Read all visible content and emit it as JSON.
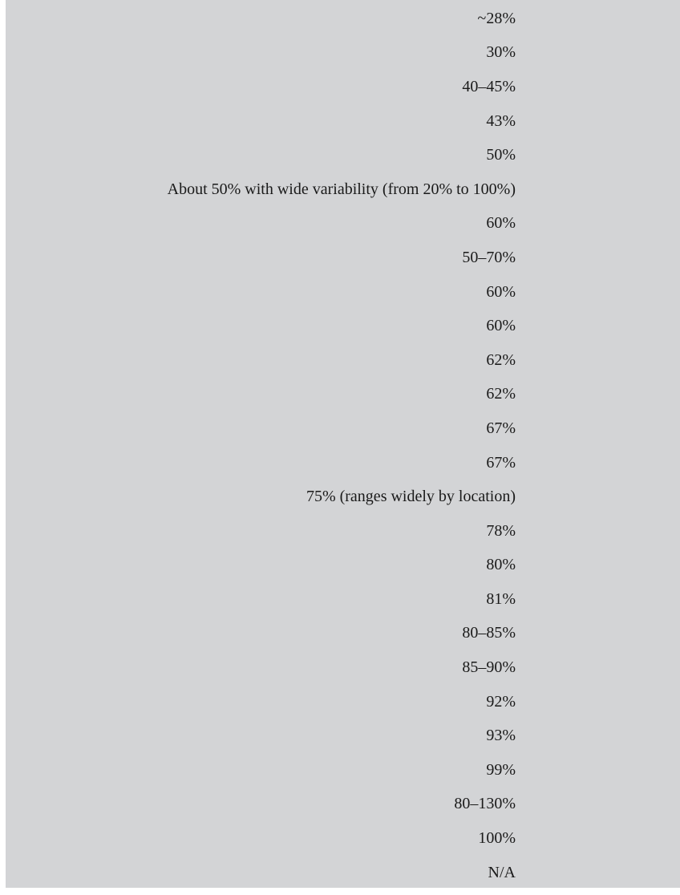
{
  "column": {
    "values": [
      "~28%",
      "30%",
      "40–45%",
      "43%",
      "50%",
      "About 50% with wide variability (from 20% to 100%)",
      "60%",
      "50–70%",
      "60%",
      "60%",
      "62%",
      "62%",
      "67%",
      "67%",
      "75% (ranges widely by location)",
      "78%",
      "80%",
      "81%",
      "80–85%",
      "85–90%",
      "92%",
      "93%",
      "99%",
      "80–130%",
      "100%",
      "N/A"
    ]
  }
}
